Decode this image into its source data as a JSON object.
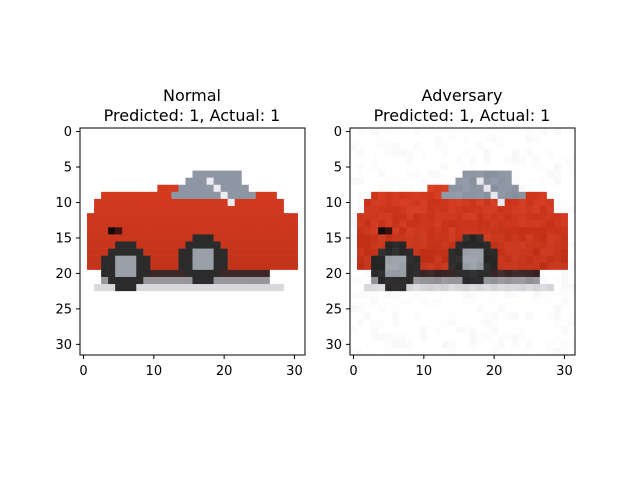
{
  "chart_data": [
    {
      "type": "image",
      "title_line1": "Normal",
      "title_line2": "Predicted: 1, Actual: 1",
      "xlim": [
        -0.5,
        31.5
      ],
      "ylim": [
        31.5,
        -0.5
      ],
      "xticks": [
        0,
        10,
        20,
        30
      ],
      "yticks": [
        0,
        5,
        10,
        15,
        20,
        25,
        30
      ],
      "image_size": [
        32,
        32
      ],
      "noise": "none"
    },
    {
      "type": "image",
      "title_line1": "Adversary",
      "title_line2": "Predicted: 1, Actual: 1",
      "xlim": [
        -0.5,
        31.5
      ],
      "ylim": [
        31.5,
        -0.5
      ],
      "xticks": [
        0,
        10,
        20,
        30
      ],
      "yticks": [
        0,
        5,
        10,
        15,
        20,
        25,
        30
      ],
      "image_size": [
        32,
        32
      ],
      "noise": "subtle per-pixel perturbation"
    }
  ],
  "colors": {
    "car_body": "#d23a1e",
    "car_shadow": "#8f1e10",
    "window": "#8e96a4",
    "tire": "#2b2b2b",
    "hubcap": "#9aa0a8",
    "background": "#ffffff"
  }
}
